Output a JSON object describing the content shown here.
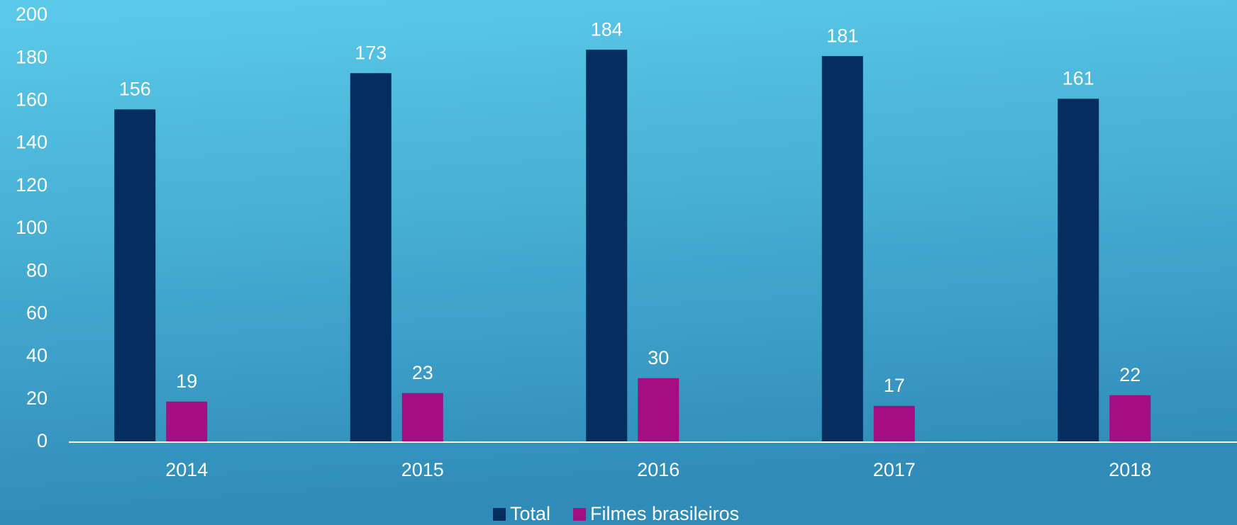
{
  "chart_data": {
    "type": "bar",
    "categories": [
      "2014",
      "2015",
      "2016",
      "2017",
      "2018"
    ],
    "series": [
      {
        "name": "Total",
        "color": "#052d5e",
        "values": [
          156,
          173,
          184,
          181,
          161
        ]
      },
      {
        "name": "Filmes brasileiros",
        "color": "#a50d82",
        "values": [
          19,
          23,
          30,
          17,
          22
        ]
      }
    ],
    "ylim": [
      0,
      200
    ],
    "yticks": [
      0,
      20,
      40,
      60,
      80,
      100,
      120,
      140,
      160,
      180,
      200
    ],
    "grid": false,
    "data_labels": true,
    "legend": "bottom"
  }
}
